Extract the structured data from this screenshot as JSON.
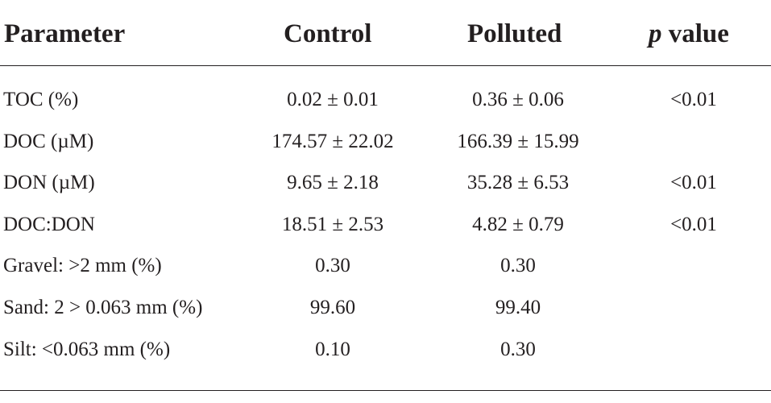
{
  "table": {
    "headers": {
      "parameter": "Parameter",
      "control": "Control",
      "polluted": "Polluted",
      "p_italic": "p",
      "p_rest": " value"
    },
    "rows": [
      {
        "parameter": "TOC (%)",
        "control": "0.02 ± 0.01",
        "polluted": "0.36 ± 0.06",
        "p_value": "<0.01"
      },
      {
        "parameter": "DOC (µM)",
        "control": "174.57 ± 22.02",
        "polluted": "166.39 ± 15.99",
        "p_value": ""
      },
      {
        "parameter": "DON (µM)",
        "control": "9.65 ± 2.18",
        "polluted": "35.28 ± 6.53",
        "p_value": "<0.01"
      },
      {
        "parameter": "DOC:DON",
        "control": "18.51 ± 2.53",
        "polluted": "4.82 ± 0.79",
        "p_value": "<0.01"
      },
      {
        "parameter": "Gravel: >2 mm (%)",
        "control": "0.30",
        "polluted": "0.30",
        "p_value": ""
      },
      {
        "parameter": "Sand: 2 > 0.063 mm (%)",
        "control": "99.60",
        "polluted": "99.40",
        "p_value": ""
      },
      {
        "parameter": "Silt: <0.063 mm (%)",
        "control": "0.10",
        "polluted": "0.30",
        "p_value": ""
      }
    ]
  }
}
